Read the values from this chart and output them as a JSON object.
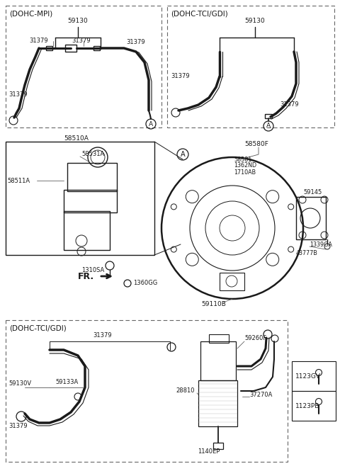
{
  "bg": "#ffffff",
  "lc": "#1a1a1a",
  "tc": "#1a1a1a",
  "dash_color": "#666666",
  "figw": 4.8,
  "figh": 6.65,
  "dpi": 100,
  "sections": {
    "top_left_label": "(DOHC-MPI)",
    "top_right_label": "(DOHC-TCI/GDI)",
    "bottom_label": "(DOHC-TCI/GDI)"
  },
  "labels": {
    "59130_tl": "59130",
    "59130_tr": "59130",
    "31379": "31379",
    "58510A": "58510A",
    "58531A": "58531A",
    "58511A": "58511A",
    "1310SA": "1310SA",
    "1360GG": "1360GG",
    "58580F": "58580F",
    "58581": "58581",
    "1362ND": "1362ND",
    "1710AB": "1710AB",
    "59145": "59145",
    "1339GA": "1339GA",
    "43777B": "43777B",
    "59110B": "59110B",
    "59130V": "59130V",
    "59133A": "59133A",
    "28810": "28810",
    "59260F": "59260F",
    "37270A": "37270A",
    "1140EP": "1140EP",
    "1123GV": "1123GV",
    "1123PB": "1123PB",
    "FR": "FR.",
    "A": "A"
  }
}
